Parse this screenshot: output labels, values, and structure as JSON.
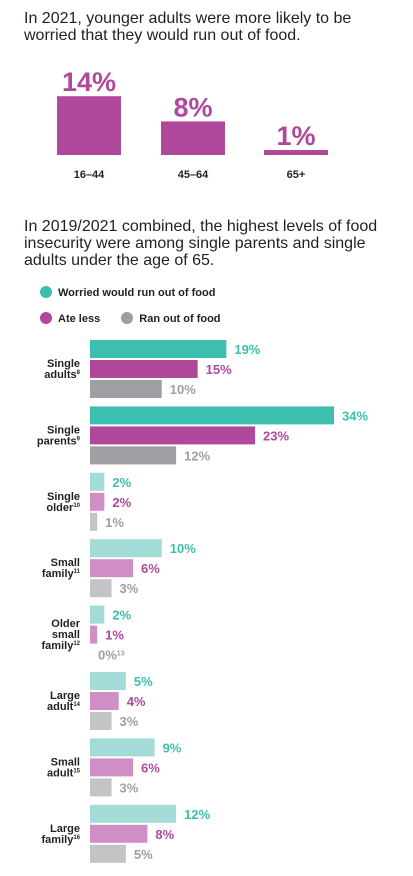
{
  "colors": {
    "teal": "#3dbfb0",
    "teal_light": "#a3dbd6",
    "purple": "#b0489c",
    "purple_light": "#d08fc4",
    "gray": "#9d9fa2",
    "gray_light": "#c2c4c6",
    "text": "#231f20"
  },
  "section1": {
    "heading": "In 2021, younger adults were more likely to be worried that they would run out of food."
  },
  "section2": {
    "heading": "In 2019/2021 combined, the highest levels of food insecurity were among single parents and single adults under the age of 65."
  },
  "chart_data": [
    {
      "type": "bar",
      "title": "",
      "categories": [
        "16–44",
        "45–64",
        "65+"
      ],
      "values": [
        14,
        8,
        1
      ],
      "value_labels": [
        "14%",
        "8%",
        "1%"
      ],
      "color": "#b0489c"
    },
    {
      "type": "bar",
      "orientation": "horizontal",
      "legend": {
        "placement": "top",
        "rows": [
          [
            {
              "label": "Worried would run out of food",
              "color": "#3dbfb0"
            }
          ],
          [
            {
              "label": "Ate less",
              "color": "#b0489c"
            },
            {
              "label": "Ran out of food",
              "color": "#9d9fa2"
            }
          ]
        ]
      },
      "categories": [
        {
          "lines": [
            "Single",
            "adults"
          ],
          "sup": "8",
          "faded": false
        },
        {
          "lines": [
            "Single",
            "parents"
          ],
          "sup": "9",
          "faded": false
        },
        {
          "lines": [
            "Single",
            "older"
          ],
          "sup": "10",
          "faded": true
        },
        {
          "lines": [
            "Small",
            "family"
          ],
          "sup": "11",
          "faded": true
        },
        {
          "lines": [
            "Older",
            "small",
            "family"
          ],
          "sup": "12",
          "faded": true
        },
        {
          "lines": [
            "Large",
            "adult"
          ],
          "sup": "14",
          "faded": true
        },
        {
          "lines": [
            "Small",
            "adult"
          ],
          "sup": "15",
          "faded": true
        },
        {
          "lines": [
            "Large",
            "family"
          ],
          "sup": "16",
          "faded": true
        }
      ],
      "series": [
        {
          "name": "Worried would run out of food",
          "values": [
            19,
            34,
            2,
            10,
            2,
            5,
            9,
            12
          ],
          "labels": [
            "19%",
            "34%",
            "2%",
            "10%",
            "2%",
            "5%",
            "9%",
            "12%"
          ]
        },
        {
          "name": "Ate less",
          "values": [
            15,
            23,
            2,
            6,
            1,
            4,
            6,
            8
          ],
          "labels": [
            "15%",
            "23%",
            "2%",
            "6%",
            "1%",
            "4%",
            "6%",
            "8%"
          ]
        },
        {
          "name": "Ran out of food",
          "values": [
            10,
            12,
            1,
            3,
            0,
            3,
            3,
            5
          ],
          "labels": [
            "10%",
            "12%",
            "1%",
            "3%",
            "0%",
            "3%",
            "3%",
            "5%"
          ],
          "label_sups": [
            "",
            "",
            "",
            "",
            "13",
            "",
            "",
            ""
          ]
        }
      ],
      "xlim": [
        0,
        34
      ]
    }
  ]
}
